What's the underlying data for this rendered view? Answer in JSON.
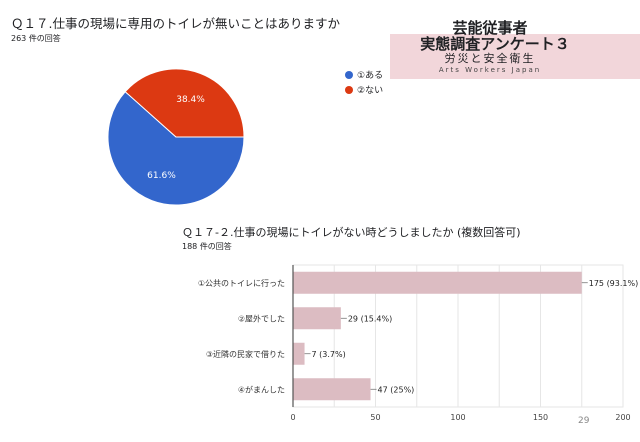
{
  "branding": {
    "line1": "芸能従事者",
    "line2": "実態調査アンケート３",
    "line3": "労災と安全衛生",
    "line4": "Arts Workers Japan",
    "banner_color": "#f2d6da"
  },
  "page_number": "29",
  "chart_data": [
    {
      "type": "pie",
      "title": "Ｑ１７.仕事の現場に専用のトイレが無いことはありますか",
      "subtitle": "263 件の回答",
      "labels": [
        "①ある",
        "②ない"
      ],
      "values": [
        61.6,
        38.4
      ],
      "value_labels": [
        "61.6%",
        "38.4%"
      ],
      "colors": [
        "#3366cc",
        "#dc3912"
      ],
      "legend": "right"
    },
    {
      "type": "bar",
      "orientation": "horizontal",
      "title": "Ｑ１７-２.仕事の現場にトイレがない時どうしましたか (複数回答可)",
      "subtitle": "188 件の回答",
      "categories": [
        "①公共のトイレに行った",
        "②屋外でした",
        "③近隣の民家で借りた",
        "④がまんした"
      ],
      "values": [
        175,
        29,
        7,
        47
      ],
      "data_labels": [
        "175 (93.1%)",
        "29 (15.4%)",
        "7 (3.7%)",
        "47 (25%)"
      ],
      "xlim": [
        0,
        200
      ],
      "xticks": [
        "0",
        "50",
        "100",
        "150",
        "200"
      ],
      "grid": true,
      "color": "#dcbcc2"
    }
  ]
}
